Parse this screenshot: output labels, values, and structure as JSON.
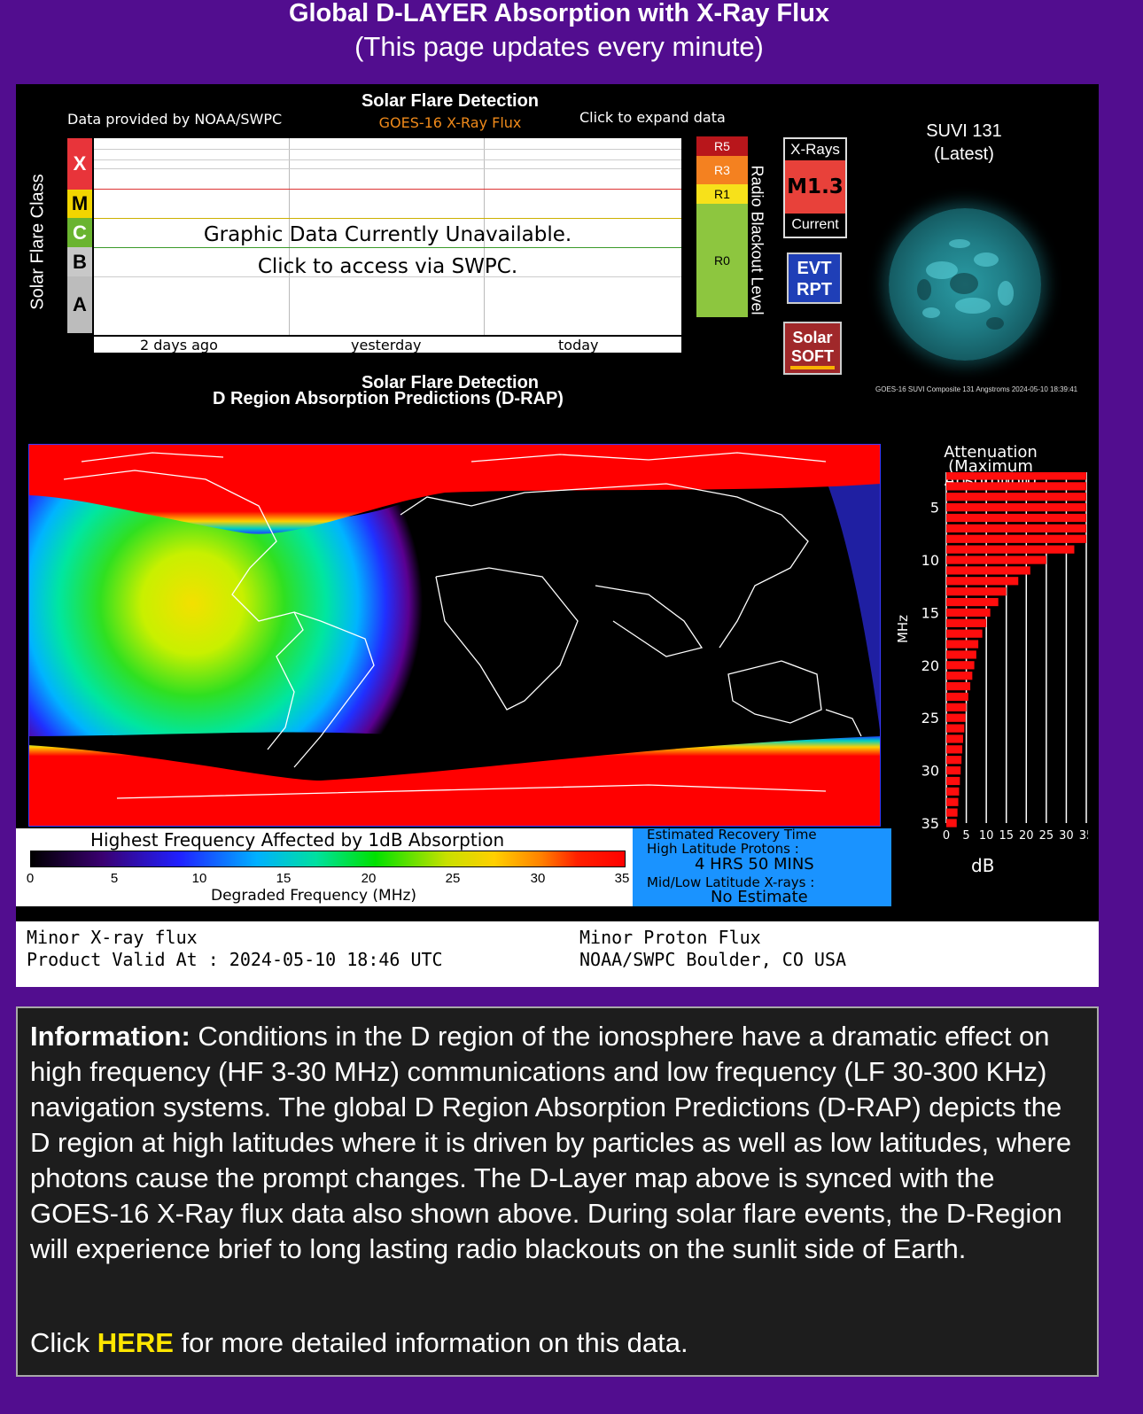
{
  "header": {
    "title": "Global D-LAYER Absorption with X-Ray Flux",
    "subtitle": "(This page updates every minute)"
  },
  "goes_panel": {
    "title": "Solar Flare Detection",
    "subtitle": "GOES-16 X-Ray Flux",
    "provided": "Data provided by NOAA/SWPC",
    "expand": "Click to expand data",
    "y_label": "Solar Flare Class",
    "classes": [
      "X",
      "M",
      "C",
      "B",
      "A"
    ],
    "unavailable": "Graphic Data Currently Unavailable.",
    "access": "Click to access via SWPC.",
    "x_ticks": [
      "2 days ago",
      "yesterday",
      "today"
    ],
    "radio_levels": [
      "R5",
      "R3",
      "R1",
      "R0"
    ],
    "radio_label": "Radio Blackout Level",
    "xray_header": "X-Rays",
    "xray_value": "M1.3",
    "xray_footer": "Current",
    "evt_line1": "EVT",
    "evt_line2": "RPT",
    "soft_line1": "Solar",
    "soft_line2": "SOFT"
  },
  "suvi": {
    "title_line1": "SUVI 131",
    "title_line2": "(Latest)",
    "caption": "GOES-16 SUVI Composite 131 Angstroms 2024-05-10 18:39:41"
  },
  "drap": {
    "detection_title": "Solar Flare Detection",
    "title": "D Region Absorption Predictions (D-RAP)",
    "attenuation_title": "Attenuation",
    "attenuation_sub": "(Maximum Absorption)",
    "mhz_label": "MHz",
    "db_label": "dB",
    "y_ticks": [
      "5",
      "10",
      "15",
      "20",
      "25",
      "30",
      "35"
    ],
    "x_ticks": [
      "0",
      "5",
      "10",
      "15",
      "20",
      "25",
      "30",
      "35"
    ],
    "legend_title": "Highest Frequency Affected by 1dB Absorption",
    "legend_ticks": [
      "0",
      "5",
      "10",
      "15",
      "20",
      "25",
      "30",
      "35"
    ],
    "legend_sub": "Degraded Frequency (MHz)",
    "recovery_title": "Estimated Recovery Time",
    "recovery_high": "High Latitude Protons :",
    "recovery_high_value": "4 HRS 50 MINS",
    "recovery_low": "Mid/Low Latitude X-rays :",
    "recovery_low_value": "No Estimate"
  },
  "status": {
    "xray": "Minor X-ray flux",
    "valid": "Product Valid At : 2024-05-10 18:46 UTC",
    "proton": "Minor Proton Flux",
    "org": "NOAA/SWPC Boulder, CO USA"
  },
  "info": {
    "label": "Information:",
    "body": " Conditions in the D region of the ionosphere have a dramatic effect on high frequency (HF 3-30 MHz) communications and low frequency (LF 30-300 KHz) navigation systems. The global D Region Absorption Predictions (D-RAP) depicts the D region at high latitudes where it is driven by particles as well as low latitudes, where photons cause the prompt changes. The D-Layer map above is synced with the GOES-16 X-Ray flux data also shown above. During solar flare events, the D-Region will experience brief to long lasting radio blackouts on the sunlit side of Earth.",
    "click_prefix": "Click ",
    "here": "HERE",
    "click_suffix": " for more detailed information on this data."
  },
  "chart_data": {
    "type": "bar",
    "title": "Attenuation",
    "subtitle": "(Maximum Absorption)",
    "ylabel": "MHz",
    "xlabel": "dB",
    "xlim": [
      0,
      35
    ],
    "ylim": [
      2,
      35
    ],
    "orientation": "horizontal",
    "y": [
      2,
      3,
      4,
      5,
      6,
      7,
      8,
      9,
      10,
      11,
      12,
      13,
      14,
      15,
      16,
      17,
      18,
      19,
      20,
      21,
      22,
      23,
      24,
      25,
      26,
      27,
      28,
      29,
      30,
      31,
      32,
      33,
      34,
      35
    ],
    "values": [
      35,
      35,
      35,
      35,
      35,
      35,
      35,
      32,
      25,
      21,
      18,
      15,
      13,
      11,
      10,
      9,
      8,
      7.5,
      7,
      6.5,
      6,
      5.5,
      5,
      4.8,
      4.5,
      4.2,
      4,
      3.8,
      3.6,
      3.4,
      3.2,
      3,
      2.8,
      2.6
    ]
  }
}
